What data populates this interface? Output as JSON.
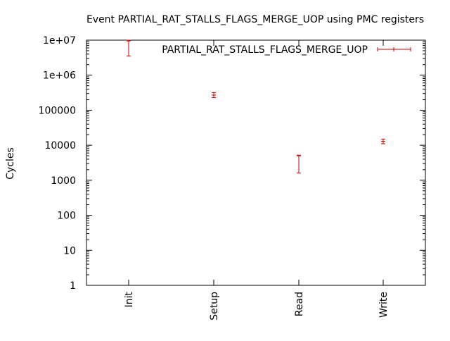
{
  "chart_data": {
    "type": "errorbar",
    "title": "Event PARTIAL_RAT_STALLS_FLAGS_MERGE_UOP using PMC registers",
    "xlabel": "",
    "ylabel": "Cycles",
    "yscale": "log",
    "ylim": [
      1,
      10000000
    ],
    "yticks": [
      {
        "value": 1,
        "label": "1"
      },
      {
        "value": 10,
        "label": "10"
      },
      {
        "value": 100,
        "label": "100"
      },
      {
        "value": 1000,
        "label": "1000"
      },
      {
        "value": 10000,
        "label": "10000"
      },
      {
        "value": 100000,
        "label": "100000"
      },
      {
        "value": 1000000,
        "label": "1e+06"
      },
      {
        "value": 10000000,
        "label": "1e+07"
      }
    ],
    "categories": [
      "Init",
      "Setup",
      "Read",
      "Write"
    ],
    "grid": false,
    "legend_position": "top-right",
    "series": [
      {
        "name": "PARTIAL_RAT_STALLS_FLAGS_MERGE_UOP",
        "color": "#cc0000",
        "points": [
          {
            "category": "Init",
            "y": 9500000,
            "low": 3500000,
            "high": 10000000
          },
          {
            "category": "Setup",
            "y": 270000,
            "low": 230000,
            "high": 320000
          },
          {
            "category": "Read",
            "y": 5000,
            "low": 1600,
            "high": 5200
          },
          {
            "category": "Write",
            "y": 13000,
            "low": 11000,
            "high": 15000
          }
        ]
      }
    ]
  }
}
